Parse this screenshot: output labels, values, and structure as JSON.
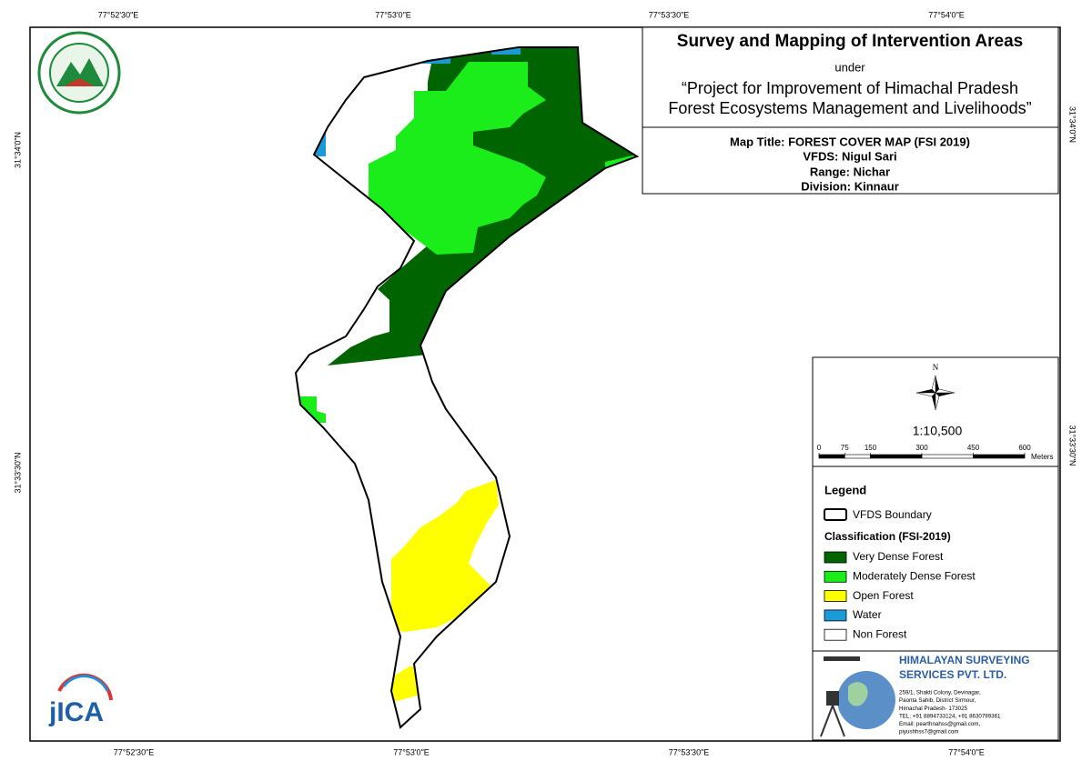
{
  "coordinates": {
    "top": [
      "77°52'30\"E",
      "77°53'0\"E",
      "77°53'30\"E",
      "77°54'0\"E"
    ],
    "bottom": [
      "77°52'30\"E",
      "77°53'0\"E",
      "77°53'30\"E",
      "77°54'0\"E"
    ],
    "left": [
      "31°34'0\"N",
      "31°33'30\"N"
    ],
    "right": [
      "31°34'0\"N",
      "31°33'30\"N"
    ]
  },
  "header": {
    "title": "Survey and Mapping of Intervention Areas",
    "under": "under",
    "project": [
      "“Project for Improvement of Himachal Pradesh",
      "Forest Ecosystems Management and Livelihoods”"
    ]
  },
  "map_info": {
    "map_title": "Map Title: FOREST COVER MAP (FSI 2019)",
    "vfds": "VFDS: Nigul Sari",
    "range": "Range: Nichar",
    "division": "Division: Kinnaur"
  },
  "north": "N",
  "scale": {
    "ratio": "1:10,500",
    "ticks": [
      0,
      75,
      150,
      300,
      450,
      600
    ],
    "unit": "Meters"
  },
  "legend": {
    "title": "Legend",
    "boundary": "VFDS Boundary",
    "classification_title": "Classification (FSI-2019)",
    "items": [
      {
        "label": "Very Dense Forest",
        "color": "#006400"
      },
      {
        "label": "Moderately Dense Forest",
        "color": "#1aed1a"
      },
      {
        "label": "Open Forest",
        "color": "#ffff00"
      },
      {
        "label": "Water",
        "color": "#1a9ad6"
      },
      {
        "label": "Non Forest",
        "color": "#ffffff"
      }
    ]
  },
  "company": {
    "name": [
      "HIMALAYAN SURVEYING",
      "SERVICES PVT. LTD."
    ],
    "address": [
      "259/1, Shakti Colony, Devinagar,",
      "Paonta Sahib, District Sirmour,",
      "Himachal Pradesh- 173025",
      "TEL: +91 8894733124, +91 8630799361",
      "Email: pearthnahss@gmail.com,",
      "piyushhss7@gmail.com"
    ]
  },
  "logos": {
    "jica": "jICA"
  }
}
